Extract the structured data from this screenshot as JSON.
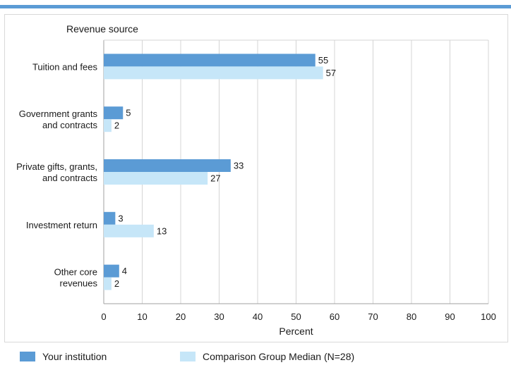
{
  "colors": {
    "top_rule": "#5b9bd5",
    "series_1": "#5b9bd5",
    "series_2": "#c6e6f8",
    "gridline": "#d4d4d4",
    "axis": "#a0a0a0"
  },
  "chart_data": {
    "type": "bar",
    "orientation": "horizontal",
    "category_axis_title": "Revenue source",
    "xlabel": "Percent",
    "xlim": [
      0,
      100
    ],
    "xticks": [
      0,
      10,
      20,
      30,
      40,
      50,
      60,
      70,
      80,
      90,
      100
    ],
    "grid": true,
    "legend_position": "bottom",
    "categories": [
      [
        "Tuition and fees"
      ],
      [
        "Government grants",
        "and contracts"
      ],
      [
        "Private gifts, grants,",
        "and contracts"
      ],
      [
        "Investment return"
      ],
      [
        "Other core",
        "revenues"
      ]
    ],
    "series": [
      {
        "name": "Your institution",
        "values": [
          55,
          5,
          33,
          3,
          4
        ]
      },
      {
        "name": "Comparison Group Median (N=28)",
        "values": [
          57,
          2,
          27,
          13,
          2
        ]
      }
    ]
  }
}
